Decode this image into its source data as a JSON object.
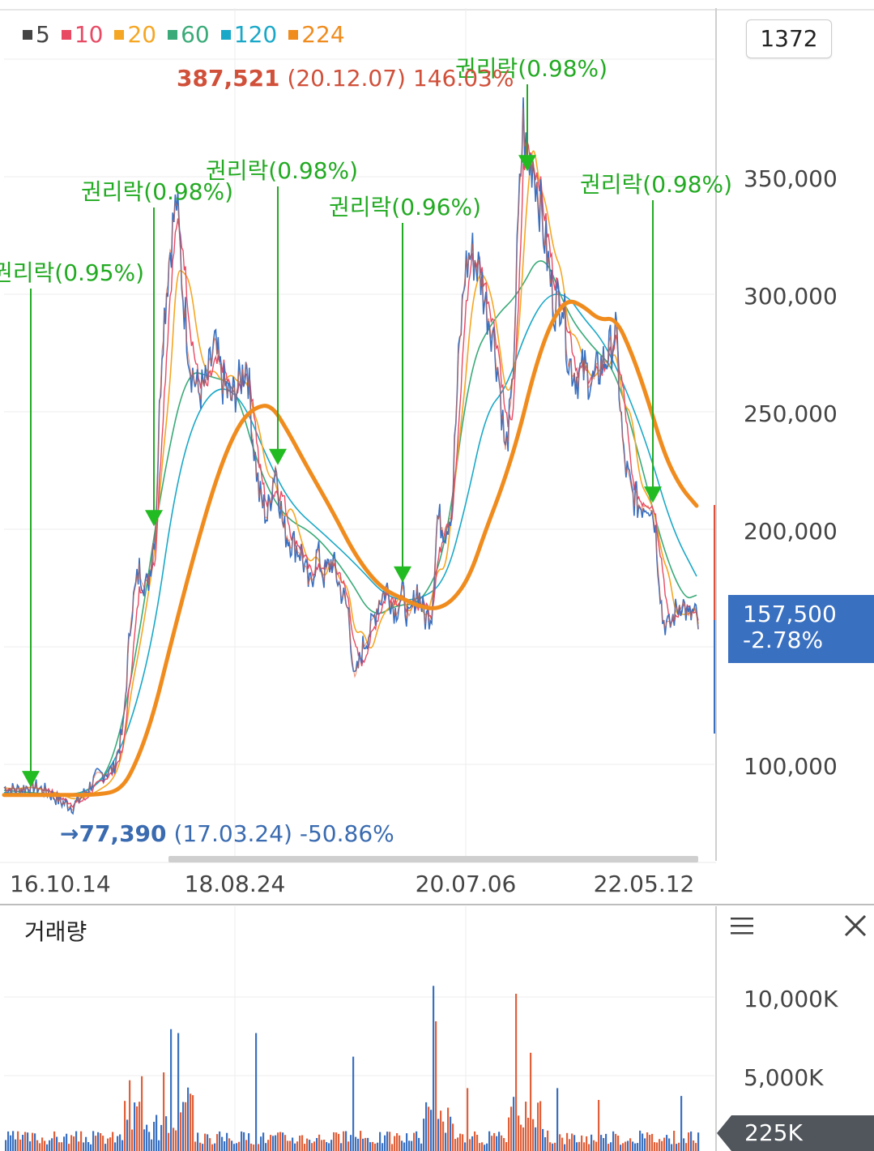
{
  "legend": [
    {
      "label": "5",
      "color": "#444444"
    },
    {
      "label": "10",
      "color": "#e84a64"
    },
    {
      "label": "20",
      "color": "#f5a623"
    },
    {
      "label": "60",
      "color": "#3aaa78"
    },
    {
      "label": "120",
      "color": "#1aa8c8"
    },
    {
      "label": "224",
      "color": "#f08c1e"
    }
  ],
  "period": "1372",
  "max_annotation": {
    "value": "387,521",
    "date": "(20.12.07)",
    "pct": "146.03%"
  },
  "min_annotation": {
    "arrow": "→",
    "value": "77,390",
    "date": "(17.03.24)",
    "pct": "-50.86%"
  },
  "current": {
    "price": "157,500",
    "change": "-2.78%"
  },
  "volume": {
    "title": "거래량",
    "current_label": "225K",
    "ticks": [
      "10,000K",
      "5,000K"
    ]
  },
  "icons": {
    "menu": "menu-icon",
    "close": "close-icon"
  },
  "chart_data": {
    "type": "line",
    "y_ticks": [
      "350,000",
      "300,000",
      "250,000",
      "200,000",
      "100,000"
    ],
    "y_tick_values": [
      350000,
      300000,
      250000,
      200000,
      100000
    ],
    "x_ticks": [
      "16.10.14",
      "18.08.24",
      "20.07.06",
      "22.05.12"
    ],
    "ex_rights": [
      {
        "label": "권리락(0.95%)",
        "x": 38,
        "y": 91000
      },
      {
        "label": "권리락(0.98%)",
        "x": 190,
        "y": 202000
      },
      {
        "label": "권리락(0.98%)",
        "x": 343,
        "y": 228000
      },
      {
        "label": "권리락(0.96%)",
        "x": 497,
        "y": 178000
      },
      {
        "label": "권리락(0.98%)",
        "x": 651,
        "y": 353000
      },
      {
        "label": "권리락(0.98%)",
        "x": 806,
        "y": 212000
      }
    ],
    "price_series": [
      [
        5,
        90000
      ],
      [
        20,
        89000
      ],
      [
        40,
        91000
      ],
      [
        60,
        88000
      ],
      [
        75,
        84000
      ],
      [
        90,
        82000
      ],
      [
        105,
        88000
      ],
      [
        120,
        95000
      ],
      [
        140,
        98000
      ],
      [
        152,
        115000
      ],
      [
        162,
        165000
      ],
      [
        172,
        183000
      ],
      [
        182,
        175000
      ],
      [
        192,
        202000
      ],
      [
        200,
        280000
      ],
      [
        210,
        320000
      ],
      [
        218,
        340000
      ],
      [
        226,
        300000
      ],
      [
        235,
        270000
      ],
      [
        245,
        258000
      ],
      [
        255,
        262000
      ],
      [
        265,
        278000
      ],
      [
        275,
        262000
      ],
      [
        285,
        255000
      ],
      [
        295,
        262000
      ],
      [
        305,
        272000
      ],
      [
        312,
        240000
      ],
      [
        320,
        215000
      ],
      [
        330,
        205000
      ],
      [
        340,
        228000
      ],
      [
        350,
        200000
      ],
      [
        360,
        195000
      ],
      [
        372,
        190000
      ],
      [
        382,
        175000
      ],
      [
        392,
        190000
      ],
      [
        400,
        180000
      ],
      [
        410,
        187000
      ],
      [
        420,
        175000
      ],
      [
        430,
        165000
      ],
      [
        438,
        135000
      ],
      [
        448,
        150000
      ],
      [
        458,
        158000
      ],
      [
        468,
        170000
      ],
      [
        478,
        175000
      ],
      [
        488,
        165000
      ],
      [
        497,
        173000
      ],
      [
        505,
        160000
      ],
      [
        515,
        175000
      ],
      [
        525,
        162000
      ],
      [
        533,
        165000
      ],
      [
        540,
        205000
      ],
      [
        550,
        200000
      ],
      [
        558,
        210000
      ],
      [
        566,
        270000
      ],
      [
        574,
        310000
      ],
      [
        582,
        318000
      ],
      [
        592,
        310000
      ],
      [
        600,
        295000
      ],
      [
        608,
        285000
      ],
      [
        616,
        265000
      ],
      [
        624,
        232000
      ],
      [
        632,
        255000
      ],
      [
        640,
        330000
      ],
      [
        646,
        375000
      ],
      [
        651,
        353000
      ],
      [
        658,
        358000
      ],
      [
        666,
        340000
      ],
      [
        674,
        320000
      ],
      [
        684,
        295000
      ],
      [
        694,
        300000
      ],
      [
        702,
        272000
      ],
      [
        712,
        265000
      ],
      [
        722,
        268000
      ],
      [
        732,
        262000
      ],
      [
        742,
        270000
      ],
      [
        752,
        275000
      ],
      [
        760,
        285000
      ],
      [
        770,
        230000
      ],
      [
        780,
        215000
      ],
      [
        790,
        210000
      ],
      [
        800,
        213000
      ],
      [
        808,
        205000
      ],
      [
        818,
        162000
      ],
      [
        826,
        158000
      ],
      [
        834,
        165000
      ],
      [
        842,
        170000
      ],
      [
        850,
        162000
      ],
      [
        858,
        165000
      ],
      [
        862,
        157500
      ]
    ],
    "ma224": [
      [
        5,
        87000
      ],
      [
        40,
        87000
      ],
      [
        80,
        87000
      ],
      [
        120,
        87000
      ],
      [
        150,
        89000
      ],
      [
        170,
        102000
      ],
      [
        190,
        122000
      ],
      [
        210,
        150000
      ],
      [
        240,
        190000
      ],
      [
        270,
        225000
      ],
      [
        295,
        245000
      ],
      [
        315,
        252000
      ],
      [
        335,
        253000
      ],
      [
        355,
        242000
      ],
      [
        380,
        226000
      ],
      [
        410,
        208000
      ],
      [
        440,
        188000
      ],
      [
        470,
        175000
      ],
      [
        500,
        170000
      ],
      [
        520,
        167000
      ],
      [
        540,
        166000
      ],
      [
        560,
        170000
      ],
      [
        580,
        180000
      ],
      [
        600,
        200000
      ],
      [
        620,
        218000
      ],
      [
        640,
        240000
      ],
      [
        660,
        268000
      ],
      [
        680,
        288000
      ],
      [
        700,
        298000
      ],
      [
        720,
        295000
      ],
      [
        740,
        289000
      ],
      [
        760,
        290000
      ],
      [
        780,
        275000
      ],
      [
        800,
        255000
      ],
      [
        820,
        232000
      ],
      [
        840,
        218000
      ],
      [
        860,
        210000
      ]
    ],
    "ma120": [
      [
        5,
        88000
      ],
      [
        60,
        87000
      ],
      [
        100,
        87000
      ],
      [
        130,
        94000
      ],
      [
        160,
        115000
      ],
      [
        190,
        155000
      ],
      [
        215,
        215000
      ],
      [
        240,
        248000
      ],
      [
        270,
        262000
      ],
      [
        300,
        255000
      ],
      [
        330,
        230000
      ],
      [
        360,
        210000
      ],
      [
        400,
        198000
      ],
      [
        440,
        185000
      ],
      [
        480,
        170000
      ],
      [
        520,
        170000
      ],
      [
        550,
        178000
      ],
      [
        575,
        210000
      ],
      [
        600,
        250000
      ],
      [
        625,
        260000
      ],
      [
        650,
        285000
      ],
      [
        675,
        300000
      ],
      [
        700,
        300000
      ],
      [
        720,
        290000
      ],
      [
        745,
        280000
      ],
      [
        770,
        262000
      ],
      [
        800,
        235000
      ],
      [
        830,
        200000
      ],
      [
        860,
        180000
      ]
    ],
    "ma60": [
      [
        5,
        89000
      ],
      [
        70,
        87000
      ],
      [
        110,
        88000
      ],
      [
        140,
        100000
      ],
      [
        170,
        150000
      ],
      [
        200,
        220000
      ],
      [
        230,
        268000
      ],
      [
        260,
        265000
      ],
      [
        290,
        262000
      ],
      [
        320,
        225000
      ],
      [
        350,
        205000
      ],
      [
        390,
        198000
      ],
      [
        430,
        180000
      ],
      [
        460,
        162000
      ],
      [
        490,
        168000
      ],
      [
        520,
        168000
      ],
      [
        550,
        190000
      ],
      [
        580,
        270000
      ],
      [
        610,
        290000
      ],
      [
        640,
        300000
      ],
      [
        670,
        320000
      ],
      [
        700,
        292000
      ],
      [
        730,
        278000
      ],
      [
        760,
        268000
      ],
      [
        790,
        230000
      ],
      [
        820,
        190000
      ],
      [
        845,
        170000
      ],
      [
        860,
        172000
      ]
    ]
  }
}
